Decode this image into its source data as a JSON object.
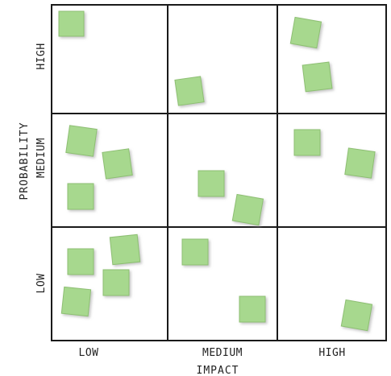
{
  "axes": {
    "x_title": "IMPACT",
    "y_title": "PROBABILITY",
    "x_levels": [
      "LOW",
      "MEDIUM",
      "HIGH"
    ],
    "y_levels": [
      "HIGH",
      "MEDIUM",
      "LOW"
    ]
  },
  "notes": [
    {
      "row": 0,
      "col": 0,
      "count": 1
    },
    {
      "row": 0,
      "col": 1,
      "count": 1
    },
    {
      "row": 0,
      "col": 2,
      "count": 2
    },
    {
      "row": 1,
      "col": 0,
      "count": 3
    },
    {
      "row": 1,
      "col": 1,
      "count": 2
    },
    {
      "row": 1,
      "col": 2,
      "count": 2
    },
    {
      "row": 2,
      "col": 0,
      "count": 4
    },
    {
      "row": 2,
      "col": 1,
      "count": 2
    },
    {
      "row": 2,
      "col": 2,
      "count": 1
    }
  ],
  "colors": {
    "note_fill": "#a7d88e",
    "note_shadow": "#c9c9c9",
    "grid_line": "#1a1a1a"
  }
}
